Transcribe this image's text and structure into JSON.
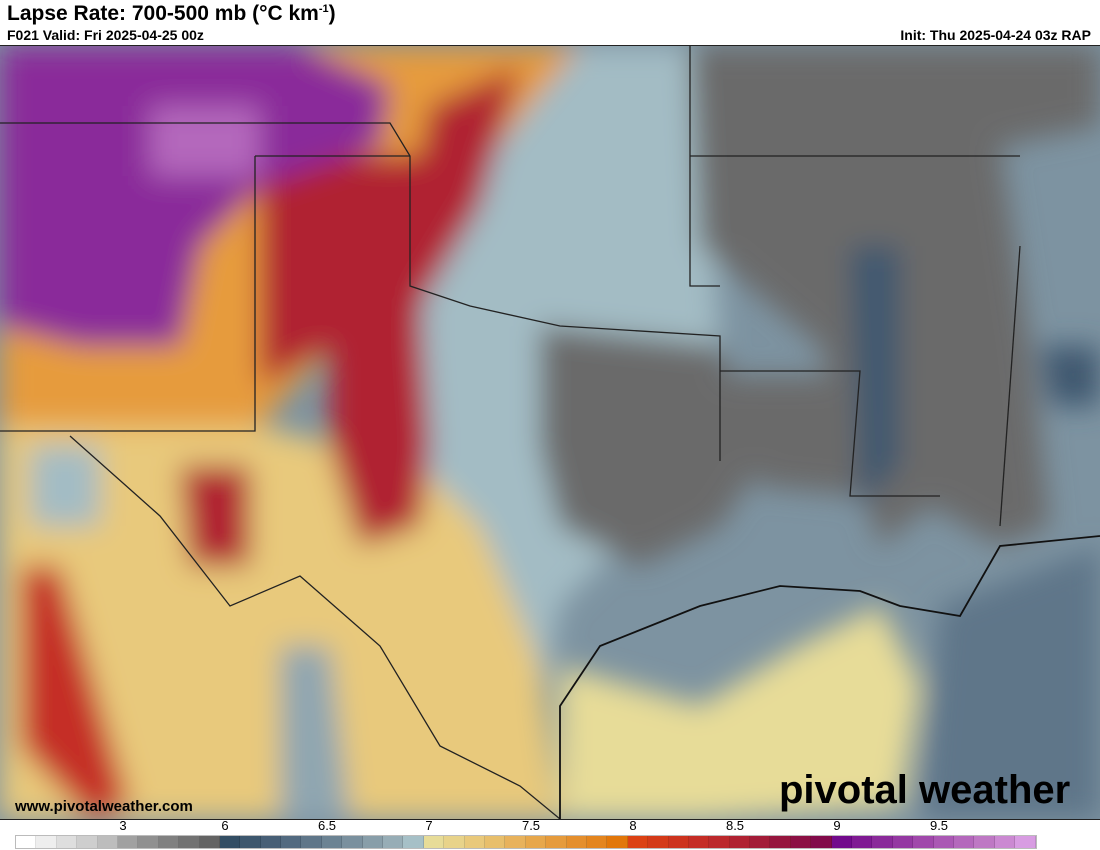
{
  "header": {
    "title": "Lapse Rate: 700-500 mb (°C km",
    "title_sup": "-1",
    "title_close": ")",
    "valid": "F021 Valid: Fri 2025-04-25 00z",
    "init": "Init: Thu 2025-04-24 03z RAP"
  },
  "footer": {
    "website": "www.pivotalweather.com",
    "logo_text": "pivotal weather"
  },
  "colorbar": {
    "ticks": [
      {
        "label": "3",
        "cell": 5
      },
      {
        "label": "6",
        "cell": 10
      },
      {
        "label": "6.5",
        "cell": 15
      },
      {
        "label": "7",
        "cell": 20
      },
      {
        "label": "7.5",
        "cell": 25
      },
      {
        "label": "8",
        "cell": 30
      },
      {
        "label": "8.5",
        "cell": 35
      },
      {
        "label": "9",
        "cell": 40
      },
      {
        "label": "9.5",
        "cell": 45
      }
    ],
    "colors": [
      "#ffffff",
      "#eeeeee",
      "#dedede",
      "#cecece",
      "#bdbdbd",
      "#a1a1a1",
      "#909090",
      "#808080",
      "#727272",
      "#636363",
      "#334e64",
      "#3d576e",
      "#475f76",
      "#526a80",
      "#5f7689",
      "#6c8393",
      "#7a909e",
      "#889ea9",
      "#97adb6",
      "#a6c0c7",
      "#e7dc98",
      "#e8d38a",
      "#e9c97b",
      "#e8bf6c",
      "#e8b25c",
      "#e7a74b",
      "#e69b3c",
      "#e58f2d",
      "#e4851e",
      "#e2770a",
      "#dc4214",
      "#d43a18",
      "#cd331e",
      "#c52d26",
      "#bc292c",
      "#b02232",
      "#a31c38",
      "#96163e",
      "#8c1044",
      "#820a4a",
      "#720a8c",
      "#7f1a93",
      "#8a2a9a",
      "#9438a2",
      "#a048ab",
      "#aa58b4",
      "#b468bc",
      "#be78c4",
      "#cb89d2",
      "#d89ce2"
    ]
  },
  "map": {
    "colors": {
      "grey": "#6a6a6a",
      "ocean_base": "#7d93a1",
      "purple": "#8a2a9a",
      "red": "#a31c38",
      "orange": "#e08a30",
      "yellow": "#e7dc98"
    }
  }
}
